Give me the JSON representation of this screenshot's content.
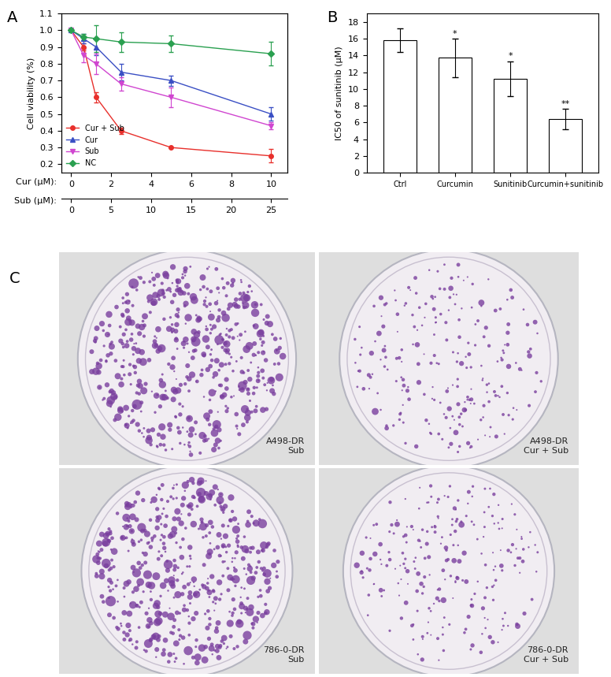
{
  "chart_data": [
    {
      "type": "line",
      "title": "A",
      "ylabel": "Cell viability (%)",
      "xlabel": "Cur (μM):",
      "x2label": "Sub (μM):",
      "x": [
        0,
        0.625,
        1.25,
        2.5,
        5,
        10
      ],
      "xlim": [
        -0.5,
        10.8
      ],
      "xticks": [
        0,
        2,
        4,
        6,
        8,
        10
      ],
      "x2lim": [
        -1.25,
        27
      ],
      "x2ticks": [
        0,
        5,
        10,
        15,
        20,
        25
      ],
      "ylim": [
        0.15,
        1.1
      ],
      "yticks": [
        0.2,
        0.3,
        0.4,
        0.5,
        0.6,
        0.7,
        0.8,
        0.9,
        {
          "value": 1,
          "label": "1.0"
        },
        1.1
      ],
      "legend": "lower left",
      "series": [
        {
          "name": "Cur + Sub",
          "color": "#e8302c",
          "marker": "circle",
          "values": [
            1.0,
            0.9,
            0.6,
            0.4,
            0.3,
            0.25
          ],
          "errors": [
            0,
            0.02,
            0.03,
            0.02,
            0,
            0.04
          ]
        },
        {
          "name": "Cur",
          "color": "#3a4fc4",
          "marker": "triangle",
          "values": [
            1.0,
            0.95,
            0.9,
            0.75,
            0.7,
            0.5
          ],
          "errors": [
            0,
            0.03,
            0.05,
            0.05,
            0.03,
            0.04
          ]
        },
        {
          "name": "Sub",
          "color": "#d046d0",
          "marker": "triangle_down",
          "values": [
            1.0,
            0.85,
            0.8,
            0.68,
            0.6,
            0.43
          ],
          "errors": [
            0,
            0.04,
            0.06,
            0.04,
            0.06,
            0.02
          ]
        },
        {
          "name": "NC",
          "color": "#2aa050",
          "marker": "diamond",
          "values": [
            1.0,
            0.96,
            0.95,
            0.93,
            0.92,
            0.86
          ],
          "errors": [
            0,
            0.02,
            0.08,
            0.06,
            0.05,
            0.07
          ]
        }
      ]
    },
    {
      "type": "bar",
      "title": "B",
      "ylabel": "IC50 of sunitinib (μM)",
      "categories": [
        "Ctrl",
        "Curcumin",
        "Sunitinib",
        "Curcumin+sunitinib"
      ],
      "values": [
        15.8,
        13.7,
        11.2,
        6.4
      ],
      "errors": [
        1.4,
        2.3,
        2.1,
        1.2
      ],
      "annotations": [
        null,
        "*",
        "*",
        "**"
      ],
      "color": "#ffffff",
      "ylim": [
        0,
        19
      ],
      "yticks": [
        0,
        2,
        4,
        6,
        8,
        10,
        12,
        14,
        16,
        18
      ]
    }
  ],
  "image_panel": {
    "title": "C",
    "plates": [
      {
        "cell_line": "A498-DR",
        "treatment": "Sub"
      },
      {
        "cell_line": "A498-DR",
        "treatment": "Cur + Sub"
      },
      {
        "cell_line": "786-0-DR",
        "treatment": "Sub"
      },
      {
        "cell_line": "786-0-DR",
        "treatment": "Cur + Sub"
      }
    ]
  }
}
